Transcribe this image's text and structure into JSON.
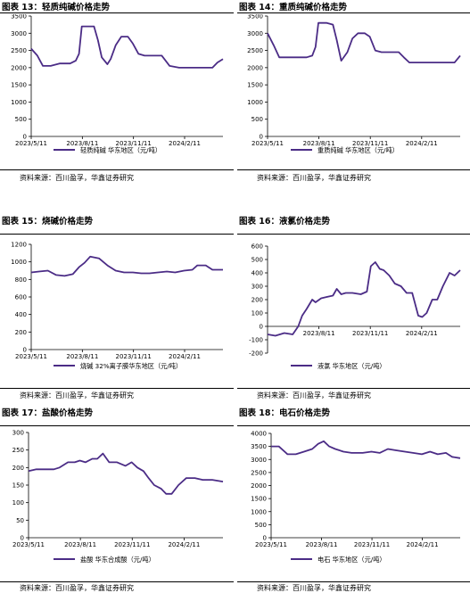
{
  "colors": {
    "line": "#4b2c86",
    "axis": "#000000"
  },
  "chart_data": [
    {
      "type": "line",
      "title": "图表 13：轻质纯碱价格走势",
      "source": "资料来源：百川盈孚，华鑫证券研究",
      "ylim": [
        0,
        3500
      ],
      "yticks": [
        0,
        500,
        1000,
        1500,
        2000,
        2500,
        3000,
        3500
      ],
      "tick_labels": [
        "2023/5/11",
        "2023/8/11",
        "2023/11/11",
        "2024/2/11"
      ],
      "legend_position": "bottom",
      "series": [
        {
          "name": "轻质纯碱 华东地区（元/吨）",
          "x": [
            "2023-05-11",
            "2023-05-22",
            "2023-06-01",
            "2023-06-15",
            "2023-07-01",
            "2023-07-20",
            "2023-07-30",
            "2023-08-05",
            "2023-08-10",
            "2023-08-20",
            "2023-09-01",
            "2023-09-08",
            "2023-09-15",
            "2023-09-25",
            "2023-10-01",
            "2023-10-10",
            "2023-10-20",
            "2023-11-01",
            "2023-11-10",
            "2023-11-20",
            "2023-12-01",
            "2023-12-10",
            "2023-12-20",
            "2024-01-01",
            "2024-01-15",
            "2024-02-01",
            "2024-02-08",
            "2024-02-20",
            "2024-03-01",
            "2024-03-20",
            "2024-04-01",
            "2024-04-10",
            "2024-04-20"
          ],
          "values": [
            2550,
            2350,
            2050,
            2050,
            2120,
            2120,
            2200,
            2400,
            3200,
            3200,
            3200,
            2800,
            2300,
            2100,
            2250,
            2650,
            2900,
            2900,
            2700,
            2400,
            2350,
            2350,
            2350,
            2350,
            2050,
            2000,
            2000,
            2000,
            2000,
            2000,
            2000,
            2150,
            2250
          ]
        }
      ]
    },
    {
      "type": "line",
      "title": "图表 14：重质纯碱价格走势",
      "source": "资料来源：百川盈孚，华鑫证券研究",
      "ylim": [
        0,
        3500
      ],
      "yticks": [
        0,
        500,
        1000,
        1500,
        2000,
        2500,
        3000,
        3500
      ],
      "tick_labels": [
        "2023/5/11",
        "2023/8/11",
        "2023/11/11",
        "2024/2/11"
      ],
      "legend_position": "bottom",
      "series": [
        {
          "name": "重质纯碱 华东地区（元/吨）",
          "x": [
            "2023-05-11",
            "2023-05-22",
            "2023-06-01",
            "2023-06-15",
            "2023-07-01",
            "2023-07-20",
            "2023-07-30",
            "2023-08-05",
            "2023-08-10",
            "2023-08-25",
            "2023-09-05",
            "2023-09-12",
            "2023-09-20",
            "2023-10-01",
            "2023-10-10",
            "2023-10-20",
            "2023-11-01",
            "2023-11-10",
            "2023-11-20",
            "2023-12-01",
            "2023-12-15",
            "2024-01-01",
            "2024-01-10",
            "2024-01-20",
            "2024-02-01",
            "2024-02-15",
            "2024-03-01",
            "2024-03-20",
            "2024-04-01",
            "2024-04-10",
            "2024-04-20"
          ],
          "values": [
            3000,
            2650,
            2300,
            2300,
            2300,
            2300,
            2350,
            2600,
            3300,
            3300,
            3250,
            2800,
            2200,
            2450,
            2850,
            3000,
            3000,
            2900,
            2500,
            2450,
            2450,
            2450,
            2300,
            2150,
            2150,
            2150,
            2150,
            2150,
            2150,
            2150,
            2350
          ]
        }
      ]
    },
    {
      "type": "line",
      "title": "图表 15：烧碱价格走势",
      "source": "资料来源：百川盈孚，华鑫证券研究",
      "ylim": [
        0,
        1200
      ],
      "yticks": [
        0,
        200,
        400,
        600,
        800,
        1000,
        1200
      ],
      "tick_labels": [
        "2023/5/11",
        "2023/8/11",
        "2023/11/11",
        "2024/2/11"
      ],
      "legend_position": "bottom",
      "series": [
        {
          "name": "烧碱 32%离子膜华东地区（元/吨）",
          "x": [
            "2023-05-11",
            "2023-05-25",
            "2023-06-10",
            "2023-06-25",
            "2023-07-10",
            "2023-07-25",
            "2023-08-05",
            "2023-08-15",
            "2023-08-25",
            "2023-09-10",
            "2023-09-25",
            "2023-10-10",
            "2023-10-25",
            "2023-11-10",
            "2023-11-25",
            "2023-12-10",
            "2023-12-25",
            "2024-01-10",
            "2024-01-25",
            "2024-02-10",
            "2024-02-25",
            "2024-03-05",
            "2024-03-20",
            "2024-04-01",
            "2024-04-20"
          ],
          "values": [
            880,
            890,
            900,
            850,
            840,
            860,
            940,
            990,
            1060,
            1040,
            960,
            900,
            880,
            880,
            870,
            870,
            880,
            890,
            880,
            900,
            910,
            960,
            960,
            910,
            910
          ]
        }
      ]
    },
    {
      "type": "line",
      "title": "图表 16：液氯价格走势",
      "source": "资料来源：百川盈孚，华鑫证券研究",
      "ylim": [
        -200,
        600
      ],
      "yticks": [
        -200,
        -100,
        0,
        100,
        200,
        300,
        400,
        500,
        600
      ],
      "tick_labels": [
        "2023/8/11",
        "2023/11/11",
        "2024/2/11"
      ],
      "legend_position": "bottom",
      "series": [
        {
          "name": "液氯 华东地区（元/吨）",
          "x": [
            "2023-05-11",
            "2023-05-25",
            "2023-06-10",
            "2023-06-25",
            "2023-07-05",
            "2023-07-12",
            "2023-07-20",
            "2023-07-30",
            "2023-08-05",
            "2023-08-15",
            "2023-08-25",
            "2023-09-05",
            "2023-09-12",
            "2023-09-20",
            "2023-09-28",
            "2023-10-10",
            "2023-10-25",
            "2023-11-05",
            "2023-11-12",
            "2023-11-20",
            "2023-11-28",
            "2023-12-05",
            "2023-12-15",
            "2023-12-25",
            "2024-01-05",
            "2024-01-15",
            "2024-01-25",
            "2024-02-05",
            "2024-02-12",
            "2024-02-20",
            "2024-03-01",
            "2024-03-10",
            "2024-03-20",
            "2024-04-01",
            "2024-04-10",
            "2024-04-20"
          ],
          "values": [
            -60,
            -70,
            -50,
            -60,
            0,
            80,
            130,
            200,
            180,
            210,
            220,
            230,
            280,
            240,
            250,
            250,
            240,
            260,
            450,
            480,
            430,
            420,
            380,
            320,
            300,
            250,
            250,
            80,
            70,
            100,
            200,
            200,
            300,
            400,
            380,
            420
          ]
        }
      ]
    },
    {
      "type": "line",
      "title": "图表 17：盐酸价格走势",
      "source": "资料来源：百川盈孚，华鑫证券研究",
      "ylim": [
        0,
        300
      ],
      "yticks": [
        0,
        50,
        100,
        150,
        200,
        250,
        300
      ],
      "tick_labels": [
        "2023/5/11",
        "2023/8/11",
        "2023/11/11",
        "2024/2/11"
      ],
      "legend_position": "bottom",
      "series": [
        {
          "name": "盐酸 华东合成酸（元/吨）",
          "x": [
            "2023-05-11",
            "2023-05-25",
            "2023-06-10",
            "2023-06-25",
            "2023-07-05",
            "2023-07-20",
            "2023-08-01",
            "2023-08-10",
            "2023-08-20",
            "2023-09-01",
            "2023-09-10",
            "2023-09-20",
            "2023-10-01",
            "2023-10-15",
            "2023-10-30",
            "2023-11-10",
            "2023-11-20",
            "2023-12-01",
            "2023-12-10",
            "2023-12-20",
            "2024-01-01",
            "2024-01-10",
            "2024-01-20",
            "2024-02-01",
            "2024-02-15",
            "2024-03-01",
            "2024-03-15",
            "2024-04-01",
            "2024-04-20"
          ],
          "values": [
            190,
            195,
            195,
            195,
            200,
            215,
            215,
            220,
            215,
            225,
            225,
            240,
            215,
            215,
            205,
            215,
            200,
            190,
            170,
            150,
            140,
            125,
            125,
            150,
            170,
            170,
            165,
            165,
            160
          ]
        }
      ]
    },
    {
      "type": "line",
      "title": "图表 18：电石价格走势",
      "source": "资料来源：百川盈孚，华鑫证券研究",
      "ylim": [
        0,
        4000
      ],
      "yticks": [
        0,
        500,
        1000,
        1500,
        2000,
        2500,
        3000,
        3500,
        4000
      ],
      "tick_labels": [
        "2023/5/11",
        "2023/8/11",
        "2023/11/11",
        "2024/2/11"
      ],
      "legend_position": "bottom",
      "series": [
        {
          "name": "电石 华东地区（元/吨）",
          "x": [
            "2023-05-11",
            "2023-05-25",
            "2023-06-10",
            "2023-06-25",
            "2023-07-10",
            "2023-07-25",
            "2023-08-05",
            "2023-08-15",
            "2023-08-25",
            "2023-09-05",
            "2023-09-20",
            "2023-10-05",
            "2023-10-25",
            "2023-11-10",
            "2023-11-25",
            "2023-12-10",
            "2023-12-25",
            "2024-01-10",
            "2024-01-25",
            "2024-02-10",
            "2024-02-25",
            "2024-03-10",
            "2024-03-25",
            "2024-04-05",
            "2024-04-20"
          ],
          "values": [
            3500,
            3500,
            3200,
            3200,
            3300,
            3400,
            3600,
            3700,
            3500,
            3400,
            3300,
            3250,
            3250,
            3300,
            3250,
            3400,
            3350,
            3300,
            3250,
            3200,
            3300,
            3200,
            3250,
            3100,
            3050
          ]
        }
      ]
    }
  ]
}
